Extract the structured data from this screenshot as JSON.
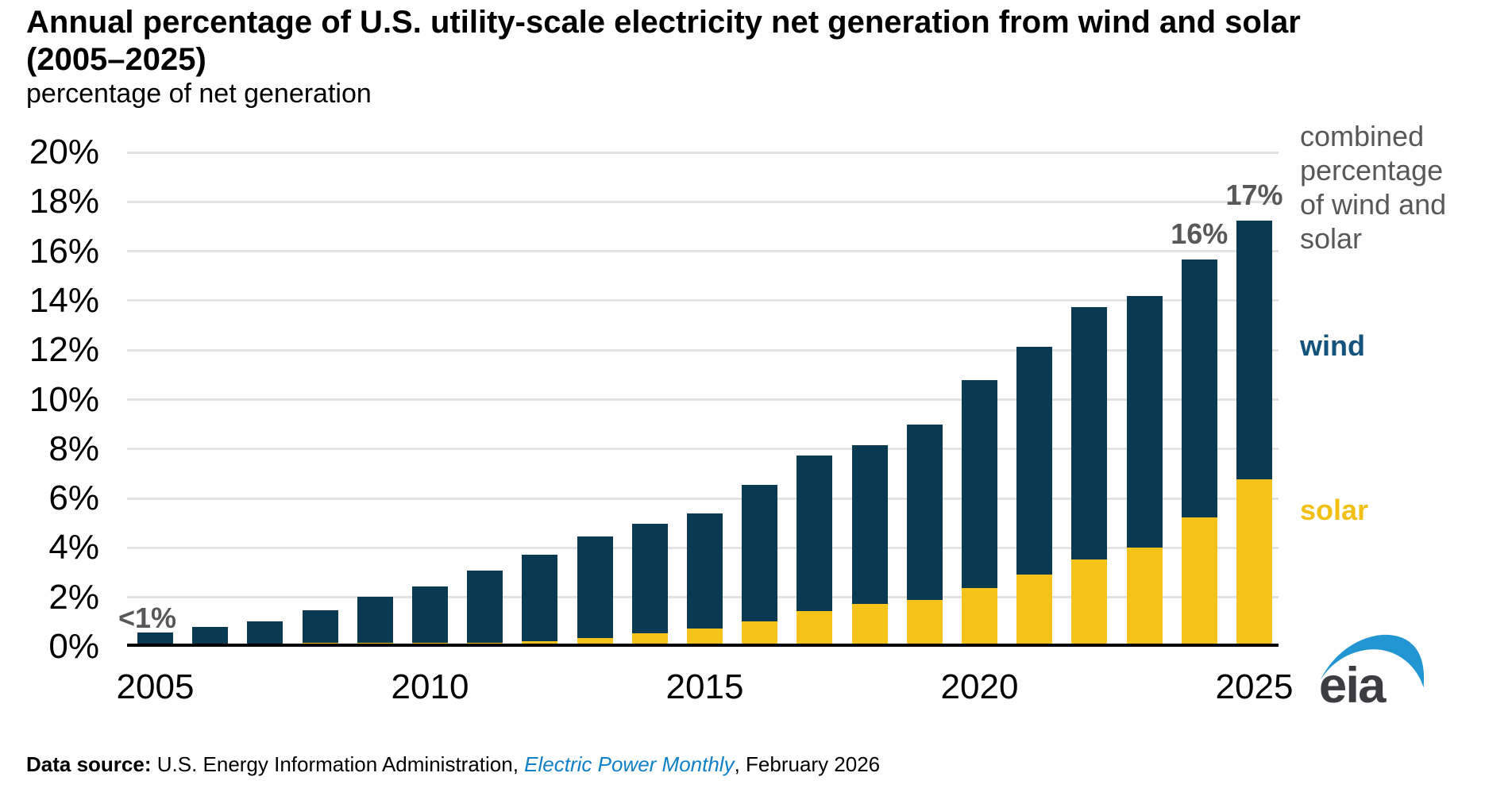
{
  "title": {
    "line1": "Annual percentage of U.S. utility-scale electricity net generation from wind and solar",
    "line2": "(2005–2025)",
    "subtitle": "percentage of net generation"
  },
  "chart_data": {
    "type": "bar",
    "stacked": true,
    "title": "Annual percentage of U.S. utility-scale electricity net generation from wind and solar (2005–2025)",
    "ylabel": "percentage of net generation",
    "ylim": [
      0,
      20
    ],
    "grid": true,
    "years": [
      2005,
      2006,
      2007,
      2008,
      2009,
      2010,
      2011,
      2012,
      2013,
      2014,
      2015,
      2016,
      2017,
      2018,
      2019,
      2020,
      2021,
      2022,
      2023,
      2024,
      2025
    ],
    "series": [
      {
        "name": "solar",
        "color": "#f5c319",
        "values": [
          0.01,
          0.01,
          0.01,
          0.02,
          0.02,
          0.03,
          0.04,
          0.11,
          0.23,
          0.43,
          0.61,
          0.9,
          1.32,
          1.6,
          1.77,
          2.25,
          2.8,
          3.4,
          3.9,
          5.1,
          6.64
        ]
      },
      {
        "name": "wind",
        "color": "#0a3a52",
        "values": [
          0.44,
          0.66,
          0.88,
          1.33,
          1.87,
          2.28,
          2.91,
          3.49,
          4.12,
          4.42,
          4.66,
          5.52,
          6.28,
          6.43,
          7.09,
          8.41,
          9.2,
          10.2,
          10.15,
          10.45,
          10.46
        ]
      }
    ],
    "y_ticks": [
      "0%",
      "2%",
      "4%",
      "6%",
      "8%",
      "10%",
      "12%",
      "14%",
      "16%",
      "18%",
      "20%"
    ],
    "x_ticks": [
      {
        "index": 0,
        "label": "2005"
      },
      {
        "index": 5,
        "label": "2010"
      },
      {
        "index": 10,
        "label": "2015"
      },
      {
        "index": 15,
        "label": "2020"
      },
      {
        "index": 20,
        "label": "2025"
      }
    ],
    "annotations": [
      {
        "index": 0,
        "text": "<1%",
        "align": "left"
      },
      {
        "index": 19,
        "text": "16%",
        "align": "center"
      },
      {
        "index": 20,
        "text": "17%",
        "align": "center"
      }
    ],
    "legend": {
      "combined": "combined percentage of wind and solar",
      "wind": "wind",
      "solar": "solar",
      "position": "right"
    }
  },
  "colors": {
    "wind_bar": "#0a3a52",
    "solar_bar": "#f5c319",
    "wind_label": "#14537c",
    "solar_label": "#f2c014",
    "annotation": "#58585a",
    "gridline": "#e3e3e3",
    "axis_line": "#000000",
    "link_blue": "#1080c6",
    "logo_swoosh": "#2196d3",
    "logo_text": "#3b3d40"
  },
  "logo": {
    "text": "eia"
  },
  "source": {
    "label": "Data source:",
    "body": " U.S. Energy Information Administration, ",
    "link": "Electric Power Monthly",
    "suffix": ", February 2026"
  }
}
